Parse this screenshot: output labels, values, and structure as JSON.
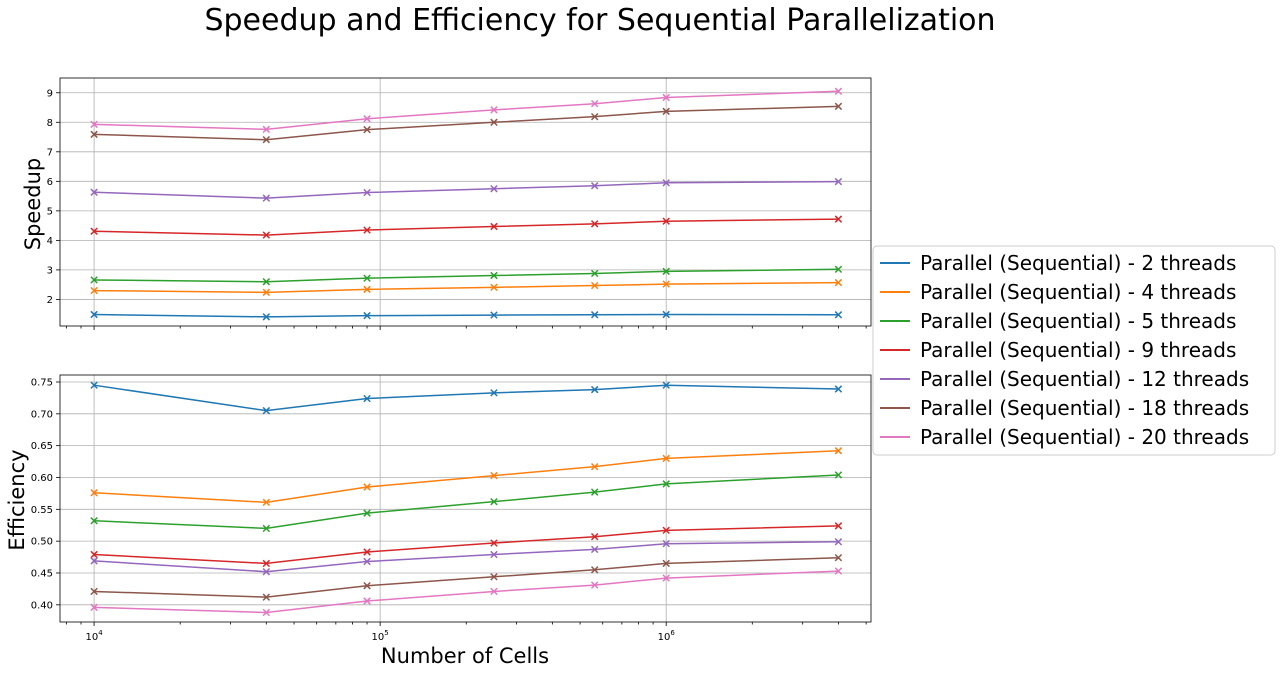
{
  "chart_data": [
    {
      "type": "line",
      "title": "Speedup and Efficiency for Sequential Parallelization",
      "ylabel": "Speedup",
      "xlabel": "",
      "x_scale": "log",
      "x": [
        10000,
        40000,
        90000,
        250000,
        562500,
        1000000,
        4000000
      ],
      "x_ticks": [
        {
          "v": 10000,
          "base": "10",
          "exp": "4"
        },
        {
          "v": 100000,
          "base": "10",
          "exp": "5"
        },
        {
          "v": 1000000,
          "base": "10",
          "exp": "6"
        }
      ],
      "xlim": [
        7600,
        5200000
      ],
      "ylim": [
        1.1,
        9.5
      ],
      "y_ticks": [
        2,
        3,
        4,
        5,
        6,
        7,
        8,
        9
      ],
      "grid": true,
      "series": [
        {
          "name": "Parallel (Sequential) - 2 threads",
          "color": "#1f77b4",
          "values": [
            1.49,
            1.41,
            1.45,
            1.47,
            1.48,
            1.49,
            1.48
          ]
        },
        {
          "name": "Parallel (Sequential) - 4 threads",
          "color": "#ff7f0e",
          "values": [
            2.3,
            2.24,
            2.34,
            2.41,
            2.47,
            2.52,
            2.57
          ]
        },
        {
          "name": "Parallel (Sequential) - 5 threads",
          "color": "#2ca02c",
          "values": [
            2.66,
            2.6,
            2.72,
            2.81,
            2.88,
            2.95,
            3.02
          ]
        },
        {
          "name": "Parallel (Sequential) - 9 threads",
          "color": "#d62728",
          "values": [
            4.31,
            4.18,
            4.35,
            4.47,
            4.56,
            4.65,
            4.72
          ]
        },
        {
          "name": "Parallel (Sequential) - 12 threads",
          "color": "#9467bd",
          "values": [
            5.63,
            5.43,
            5.62,
            5.75,
            5.85,
            5.95,
            5.99
          ]
        },
        {
          "name": "Parallel (Sequential) - 18 threads",
          "color": "#8c564b",
          "values": [
            7.59,
            7.41,
            7.75,
            8.0,
            8.19,
            8.37,
            8.54
          ]
        },
        {
          "name": "Parallel (Sequential) - 20 threads",
          "color": "#e377c2",
          "values": [
            7.93,
            7.76,
            8.12,
            8.42,
            8.63,
            8.84,
            9.05
          ]
        }
      ]
    },
    {
      "type": "line",
      "title": "",
      "ylabel": "Efficiency",
      "xlabel": "Number of Cells",
      "x_scale": "log",
      "x": [
        10000,
        40000,
        90000,
        250000,
        562500,
        1000000,
        4000000
      ],
      "x_ticks": [
        {
          "v": 10000,
          "base": "10",
          "exp": "4"
        },
        {
          "v": 100000,
          "base": "10",
          "exp": "5"
        },
        {
          "v": 1000000,
          "base": "10",
          "exp": "6"
        }
      ],
      "xlim": [
        7600,
        5200000
      ],
      "ylim": [
        0.373,
        0.761
      ],
      "y_ticks": [
        "0.40",
        "0.45",
        "0.50",
        "0.55",
        "0.60",
        "0.65",
        "0.70",
        "0.75"
      ],
      "grid": true,
      "series": [
        {
          "name": "Parallel (Sequential) - 2 threads",
          "color": "#1f77b4",
          "values": [
            0.745,
            0.705,
            0.724,
            0.733,
            0.738,
            0.745,
            0.739
          ]
        },
        {
          "name": "Parallel (Sequential) - 4 threads",
          "color": "#ff7f0e",
          "values": [
            0.576,
            0.561,
            0.585,
            0.603,
            0.617,
            0.63,
            0.642
          ]
        },
        {
          "name": "Parallel (Sequential) - 5 threads",
          "color": "#2ca02c",
          "values": [
            0.532,
            0.52,
            0.544,
            0.562,
            0.577,
            0.59,
            0.604
          ]
        },
        {
          "name": "Parallel (Sequential) - 9 threads",
          "color": "#d62728",
          "values": [
            0.479,
            0.465,
            0.483,
            0.497,
            0.507,
            0.517,
            0.524
          ]
        },
        {
          "name": "Parallel (Sequential) - 12 threads",
          "color": "#9467bd",
          "values": [
            0.469,
            0.452,
            0.468,
            0.479,
            0.487,
            0.496,
            0.499
          ]
        },
        {
          "name": "Parallel (Sequential) - 18 threads",
          "color": "#8c564b",
          "values": [
            0.421,
            0.412,
            0.43,
            0.444,
            0.455,
            0.465,
            0.474
          ]
        },
        {
          "name": "Parallel (Sequential) - 20 threads",
          "color": "#e377c2",
          "values": [
            0.396,
            0.388,
            0.406,
            0.421,
            0.431,
            0.442,
            0.453
          ]
        }
      ]
    }
  ],
  "legend": {
    "placement": "right",
    "items": [
      {
        "label": "Parallel (Sequential) - 2 threads",
        "color": "#1f77b4"
      },
      {
        "label": "Parallel (Sequential) - 4 threads",
        "color": "#ff7f0e"
      },
      {
        "label": "Parallel (Sequential) - 5 threads",
        "color": "#2ca02c"
      },
      {
        "label": "Parallel (Sequential) - 9 threads",
        "color": "#d62728"
      },
      {
        "label": "Parallel (Sequential) - 12 threads",
        "color": "#9467bd"
      },
      {
        "label": "Parallel (Sequential) - 18 threads",
        "color": "#8c564b"
      },
      {
        "label": "Parallel (Sequential) - 20 threads",
        "color": "#e377c2"
      }
    ]
  }
}
